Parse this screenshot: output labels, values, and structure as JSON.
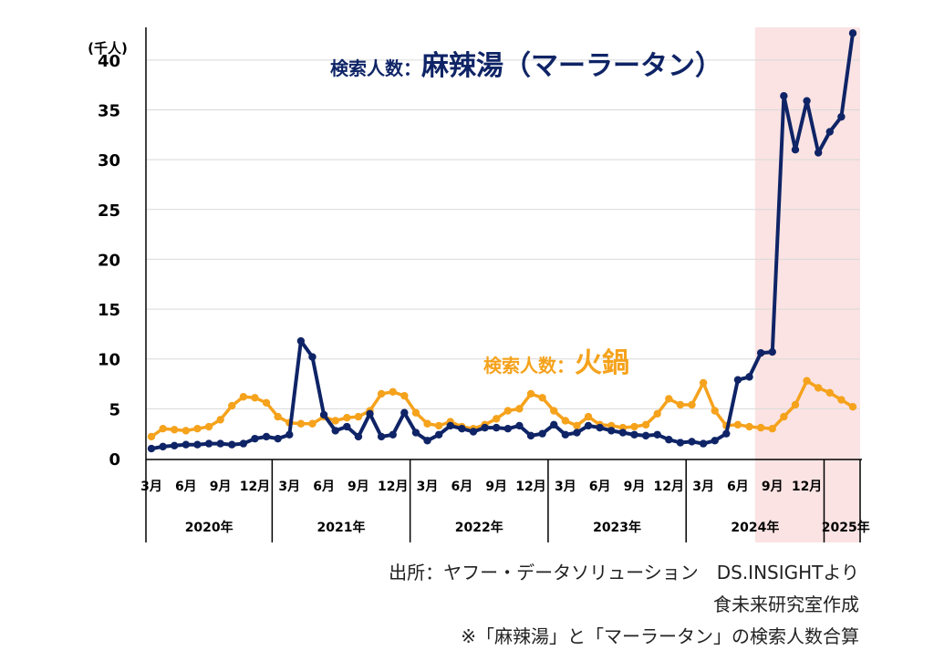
{
  "chart_data": {
    "type": "line",
    "unit_label": "(千人)",
    "yticks": [
      0,
      5,
      10,
      15,
      20,
      25,
      30,
      35,
      40
    ],
    "ylim": [
      0,
      42
    ],
    "grid": "horizontal",
    "x_month_ticks": [
      {
        "label": "3月",
        "index": 0
      },
      {
        "label": "6月",
        "index": 3
      },
      {
        "label": "9月",
        "index": 6
      },
      {
        "label": "12月",
        "index": 9
      },
      {
        "label": "3月",
        "index": 12
      },
      {
        "label": "6月",
        "index": 15
      },
      {
        "label": "9月",
        "index": 18
      },
      {
        "label": "12月",
        "index": 21
      },
      {
        "label": "3月",
        "index": 24
      },
      {
        "label": "6月",
        "index": 27
      },
      {
        "label": "9月",
        "index": 30
      },
      {
        "label": "12月",
        "index": 33
      },
      {
        "label": "3月",
        "index": 36
      },
      {
        "label": "6月",
        "index": 39
      },
      {
        "label": "9月",
        "index": 42
      },
      {
        "label": "12月",
        "index": 45
      },
      {
        "label": "3月",
        "index": 48
      },
      {
        "label": "6月",
        "index": 51
      },
      {
        "label": "9月",
        "index": 54
      },
      {
        "label": "12月",
        "index": 57
      }
    ],
    "years": [
      {
        "label": "2020年",
        "start": 0,
        "end": 10
      },
      {
        "label": "2021年",
        "start": 11,
        "end": 22
      },
      {
        "label": "2022年",
        "start": 23,
        "end": 34
      },
      {
        "label": "2023年",
        "start": 35,
        "end": 46
      },
      {
        "label": "2024年",
        "start": 47,
        "end": 58
      },
      {
        "label": "2025年",
        "start": 59,
        "end": 60
      }
    ],
    "x_start": "2020-03",
    "highlight_range": [
      53,
      60
    ],
    "series": [
      {
        "name": "麻辣湯（マーラータン）",
        "annotation_prefix": "検索人数：",
        "annotation_main": "麻辣湯（マーラータン）",
        "color": "#0f2466",
        "values": [
          1.0,
          1.2,
          1.3,
          1.4,
          1.4,
          1.5,
          1.5,
          1.4,
          1.5,
          2.0,
          2.2,
          2.0,
          2.4,
          11.8,
          10.2,
          4.4,
          2.8,
          3.2,
          2.2,
          4.5,
          2.2,
          2.4,
          4.6,
          2.6,
          1.8,
          2.4,
          3.3,
          3.0,
          2.7,
          3.1,
          3.1,
          3.0,
          3.3,
          2.3,
          2.5,
          3.4,
          2.4,
          2.6,
          3.3,
          3.1,
          2.8,
          2.6,
          2.4,
          2.3,
          2.4,
          1.9,
          1.6,
          1.7,
          1.5,
          1.8,
          2.5,
          7.9,
          8.2,
          10.6,
          10.7,
          36.4,
          31.0,
          35.9,
          30.7,
          32.8,
          34.3,
          42.7
        ]
      },
      {
        "name": "火鍋",
        "annotation_prefix": "検索人数：",
        "annotation_main": "火鍋",
        "color": "#f5a21c",
        "values": [
          2.2,
          3.0,
          2.9,
          2.8,
          3.0,
          3.2,
          3.9,
          5.3,
          6.2,
          6.1,
          5.6,
          4.2,
          3.6,
          3.5,
          3.5,
          4.2,
          3.8,
          4.1,
          4.2,
          4.8,
          6.5,
          6.7,
          6.3,
          4.6,
          3.5,
          3.3,
          3.7,
          3.2,
          3.0,
          3.4,
          4.0,
          4.8,
          5.0,
          6.5,
          6.1,
          4.8,
          3.8,
          3.3,
          4.2,
          3.4,
          3.3,
          3.1,
          3.2,
          3.4,
          4.5,
          6.0,
          5.4,
          5.4,
          7.6,
          4.8,
          3.3,
          3.4,
          3.2,
          3.1,
          3.0,
          4.2,
          5.4,
          7.8,
          7.1,
          6.6,
          5.9,
          5.2
        ]
      }
    ]
  },
  "notes": [
    "出所：ヤフー・データソリューション　DS.INSIGHTより",
    "食未来研究室作成",
    "※「麻辣湯」と「マーラータン」の検索人数合算"
  ]
}
